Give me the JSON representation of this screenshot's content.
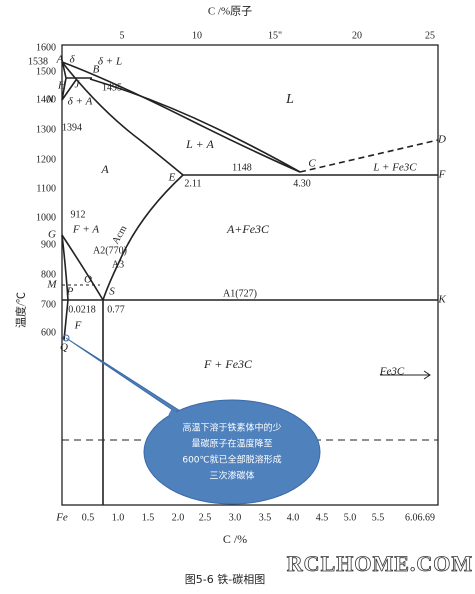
{
  "top_axis": {
    "title": "C /%原子",
    "ticks": [
      "5",
      "10",
      "15\"",
      "20",
      "25"
    ]
  },
  "left_axis": {
    "title": "温度/℃",
    "ticks": [
      "1600",
      "1500",
      "1400",
      "1300",
      "1200",
      "1100",
      "1000",
      "900",
      "800",
      "700",
      "600"
    ],
    "extra": [
      "1538",
      "1394",
      "912"
    ]
  },
  "bottom_axis": {
    "title": "C /%",
    "ticks": [
      "0.5",
      "1.0",
      "1.5",
      "2.0",
      "2.5",
      "3.0",
      "3.5",
      "4.0",
      "4.5",
      "5.0",
      "5.5",
      "6.06.69"
    ],
    "origin": "Fe"
  },
  "points": [
    "A",
    "δ",
    "H",
    "J",
    "B",
    "N",
    "E",
    "C",
    "D",
    "F",
    "G",
    "Q",
    "P",
    "S",
    "K",
    "M",
    "O"
  ],
  "regions": {
    "l": "L",
    "l_a": "L + A",
    "a": "A",
    "delta_l": "δ + L",
    "delta_a": "δ + A",
    "a_fe3c": "A+Fe3C",
    "f_fe3c": "F + Fe3C",
    "f_a": "F + A",
    "f": "F",
    "l_fe3c": "L + Fe3C",
    "fe3c": "Fe3C"
  },
  "labels": {
    "t1495": "1495",
    "t1148": "1148",
    "c211": "2.11",
    "c430": "4.30",
    "acm": "Acm",
    "a2": "A2(770)",
    "a3": "A3",
    "a1": "A1(727)",
    "c0218": "0.0218",
    "c077": "0.77"
  },
  "callout": [
    "高温下溶于铁素体中的少",
    "量碳原子在温度降至",
    "600℃就已全部脱溶形成",
    "三次渗碳体"
  ],
  "watermark": "RCLHOME.COM",
  "caption": "图5-6  铁-碳相图"
}
